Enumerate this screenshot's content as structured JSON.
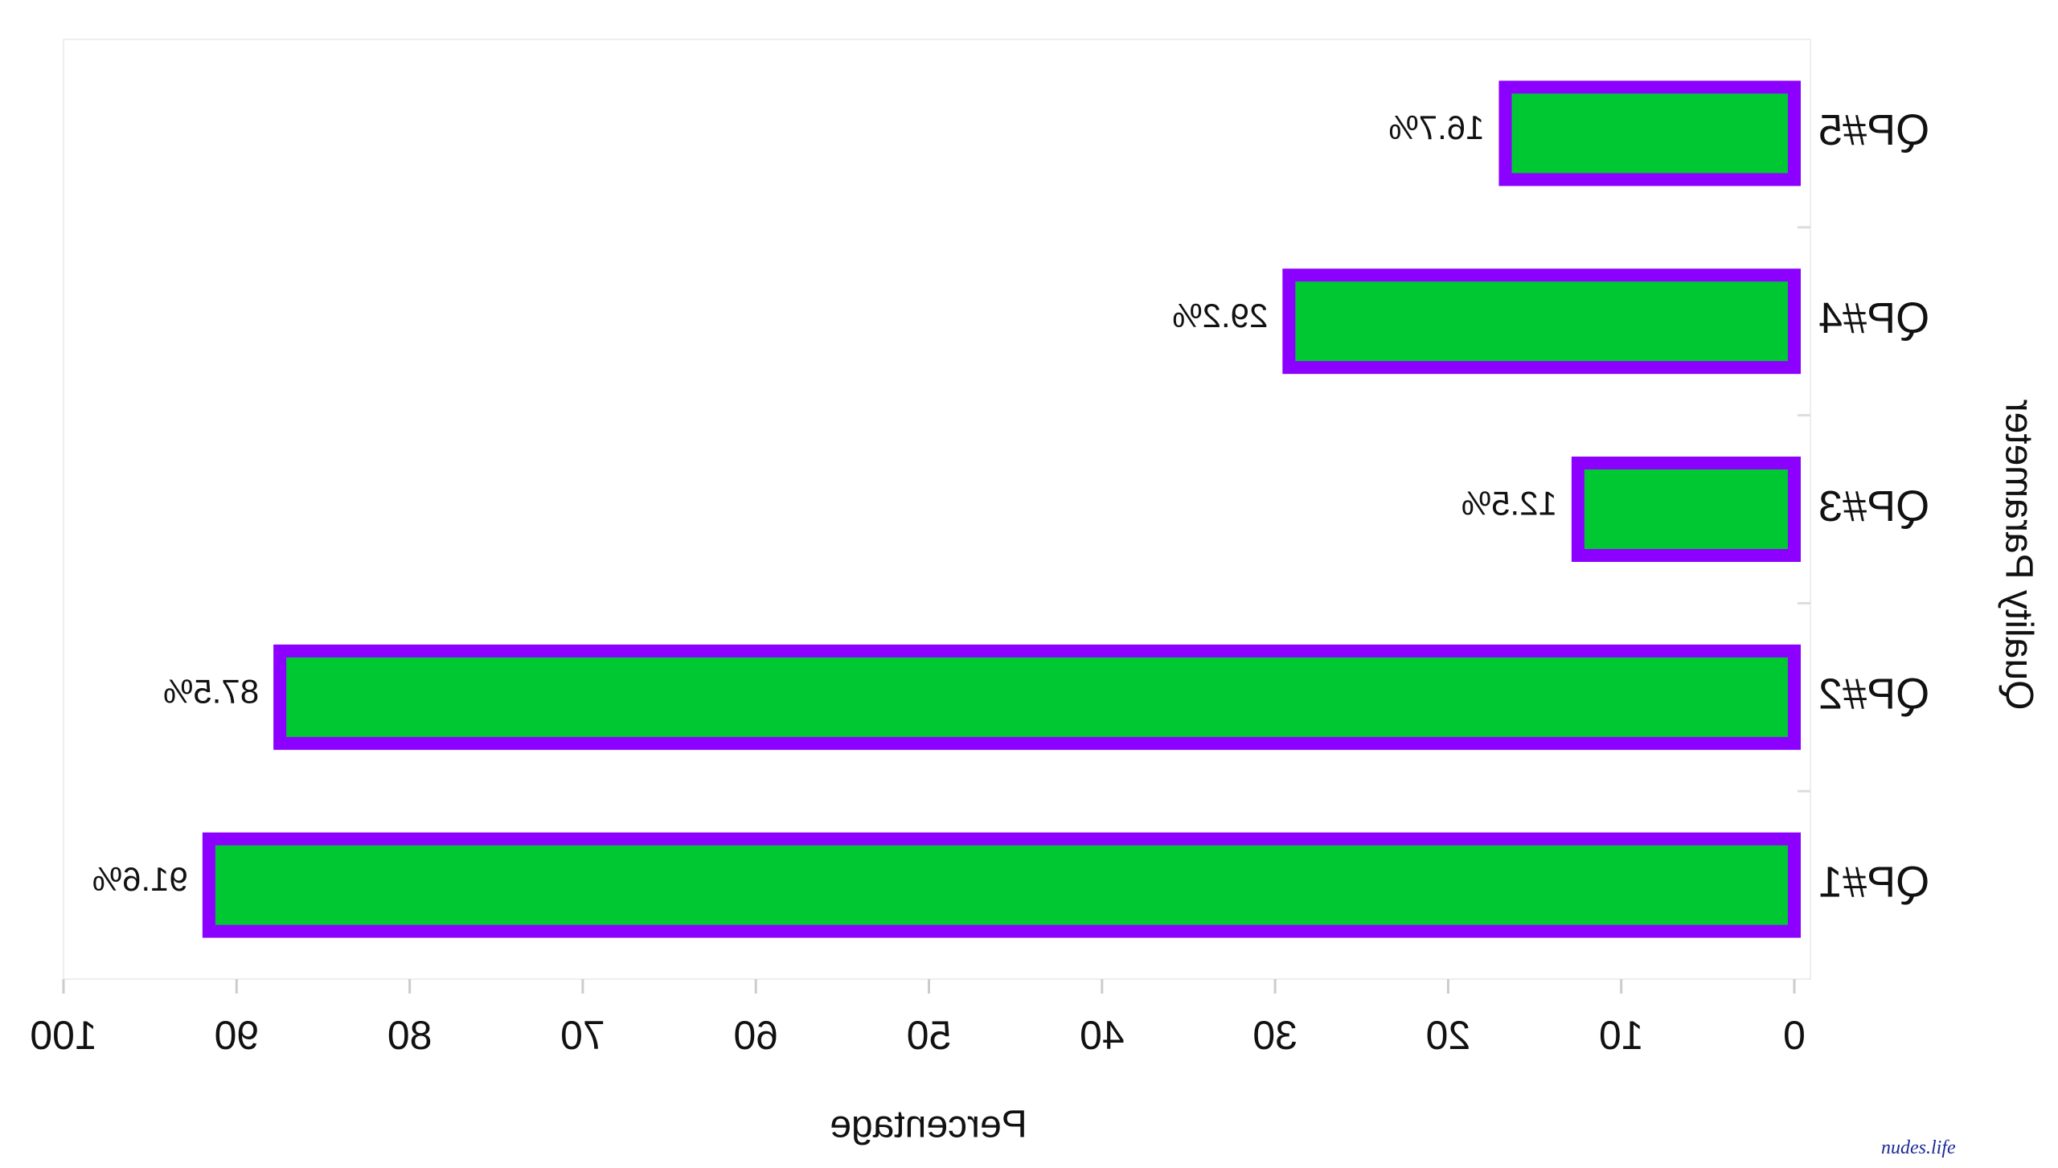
{
  "chart_data": {
    "type": "hbar",
    "x_label": "Percentage",
    "y_label": "Quality Parameter",
    "categories": [
      "QP#1",
      "QP#2",
      "QP#3",
      "QP#4",
      "QP#5"
    ],
    "values": [
      91.6,
      87.5,
      12.5,
      29.2,
      16.7
    ],
    "value_labels": [
      "91.6%",
      "87.5%",
      "12.5%",
      "29.2%",
      "16.7%"
    ],
    "color": "#00c832",
    "edge_color": "#8b00ff",
    "xlim": [
      0,
      100
    ],
    "xticks": [
      0,
      10,
      20,
      30,
      40,
      50,
      60,
      70,
      80,
      90,
      100
    ],
    "x_reversed": true,
    "grid": false
  },
  "watermark": "nudes.life"
}
